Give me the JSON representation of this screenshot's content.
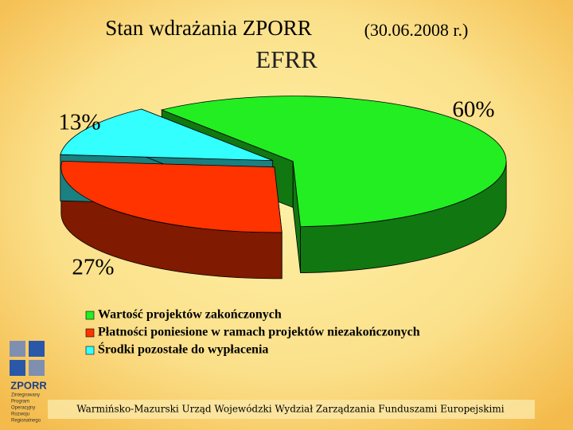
{
  "chart_data": {
    "type": "pie3d",
    "title": "Stan wdrażania ZPORR",
    "date": "(30.06.2008 r.)",
    "subtitle": "EFRR",
    "series": [
      {
        "name": "Wartość projektów zakończonych",
        "color": "#22ee22",
        "values": [
          60
        ],
        "value_labels": [
          "60%"
        ]
      },
      {
        "name": "Płatności poniesione w ramach projektów niezakończonych",
        "color": "#ff3300",
        "values": [
          27
        ],
        "value_labels": [
          "27%"
        ]
      },
      {
        "name": "Środki pozostałe do wypłacenia",
        "color": "#33ffff",
        "values": [
          13
        ],
        "value_labels": [
          "13%"
        ]
      }
    ],
    "legend": "bottom",
    "footer": "Warmińsko-Mazurski Urząd Wojewódzki Wydział Zarządzania Funduszami Europejskimi",
    "logo": {
      "name": "ZPORR",
      "lines": [
        "Zintegrowany",
        "Program",
        "Operacyjny",
        "Rozwoju",
        "Regionalnego"
      ]
    }
  }
}
